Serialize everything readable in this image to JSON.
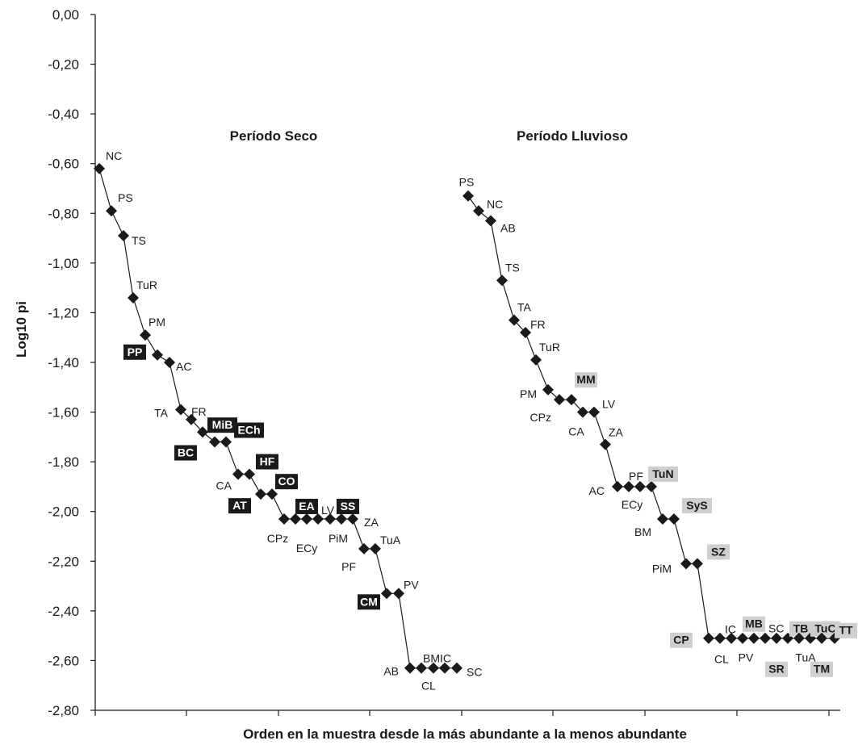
{
  "chart_data": {
    "type": "line",
    "xlabel": "Orden en la muestra desde la más abundante a la menos abundante",
    "ylabel": "Log10 pi",
    "ylim": [
      -2.8,
      0.0
    ],
    "yticks": [
      "0,00",
      "-0,20",
      "-0,40",
      "-0,60",
      "-0,80",
      "-1,00",
      "-1,20",
      "-1,40",
      "-1,60",
      "-1,80",
      "-2,00",
      "-2,20",
      "-2,40",
      "-2,60",
      "-2,80"
    ],
    "grid": false,
    "legend": "none",
    "colors": {
      "line": "#1a1a1a",
      "box_dark": "#1a1a1a",
      "box_light": "#cfcfcf"
    },
    "series": [
      {
        "name": "Período Seco",
        "points": [
          {
            "rank": 1,
            "value": -0.62,
            "label": "NC",
            "style": "plain"
          },
          {
            "rank": 2,
            "value": -0.79,
            "label": "PS",
            "style": "plain"
          },
          {
            "rank": 3,
            "value": -0.89,
            "label": "TS",
            "style": "plain"
          },
          {
            "rank": 4,
            "value": -1.14,
            "label": "TuR",
            "style": "plain"
          },
          {
            "rank": 5,
            "value": -1.29,
            "label": "PM",
            "style": "plain"
          },
          {
            "rank": 6,
            "value": -1.37,
            "label": "PP",
            "style": "dark"
          },
          {
            "rank": 7,
            "value": -1.4,
            "label": "AC",
            "style": "plain"
          },
          {
            "rank": 8,
            "value": -1.59,
            "label": "TA",
            "style": "plain"
          },
          {
            "rank": 9,
            "value": -1.63,
            "label": "FR",
            "style": "plain"
          },
          {
            "rank": 10,
            "value": -1.68,
            "label": "MiB",
            "style": "dark"
          },
          {
            "rank": 11,
            "value": -1.72,
            "label": "BC",
            "style": "dark"
          },
          {
            "rank": 12,
            "value": -1.72,
            "label": "ECh",
            "style": "dark"
          },
          {
            "rank": 13,
            "value": -1.85,
            "label": "CA",
            "style": "plain"
          },
          {
            "rank": 14,
            "value": -1.85,
            "label": "HF",
            "style": "dark"
          },
          {
            "rank": 15,
            "value": -1.93,
            "label": "AT",
            "style": "dark"
          },
          {
            "rank": 16,
            "value": -1.93,
            "label": "CO",
            "style": "dark"
          },
          {
            "rank": 17,
            "value": -2.03,
            "label": "CPz",
            "style": "plain"
          },
          {
            "rank": 18,
            "value": -2.03,
            "label": "EA",
            "style": "dark"
          },
          {
            "rank": 19,
            "value": -2.03,
            "label": "ECy",
            "style": "plain"
          },
          {
            "rank": 20,
            "value": -2.03,
            "label": "LV",
            "style": "plain"
          },
          {
            "rank": 21,
            "value": -2.03,
            "label": "PiM",
            "style": "plain"
          },
          {
            "rank": 22,
            "value": -2.03,
            "label": "SS",
            "style": "dark"
          },
          {
            "rank": 23,
            "value": -2.03,
            "label": "ZA",
            "style": "plain"
          },
          {
            "rank": 24,
            "value": -2.15,
            "label": "PF",
            "style": "plain"
          },
          {
            "rank": 25,
            "value": -2.15,
            "label": "TuA",
            "style": "plain"
          },
          {
            "rank": 26,
            "value": -2.33,
            "label": "CM",
            "style": "dark"
          },
          {
            "rank": 27,
            "value": -2.33,
            "label": "PV",
            "style": "plain"
          },
          {
            "rank": 28,
            "value": -2.63,
            "label": "AB",
            "style": "plain"
          },
          {
            "rank": 29,
            "value": -2.63,
            "label": "BM",
            "style": "plain"
          },
          {
            "rank": 30,
            "value": -2.63,
            "label": "CL",
            "style": "plain"
          },
          {
            "rank": 31,
            "value": -2.63,
            "label": "IC",
            "style": "plain"
          },
          {
            "rank": 32,
            "value": -2.63,
            "label": "SC",
            "style": "plain"
          }
        ]
      },
      {
        "name": "Período Lluvioso",
        "points": [
          {
            "rank": 1,
            "value": -0.73,
            "label": "PS",
            "style": "plain"
          },
          {
            "rank": 2,
            "value": -0.79,
            "label": "NC",
            "style": "plain"
          },
          {
            "rank": 3,
            "value": -0.83,
            "label": "AB",
            "style": "plain"
          },
          {
            "rank": 4,
            "value": -1.07,
            "label": "TS",
            "style": "plain"
          },
          {
            "rank": 5,
            "value": -1.23,
            "label": "TA",
            "style": "plain"
          },
          {
            "rank": 6,
            "value": -1.28,
            "label": "FR",
            "style": "plain"
          },
          {
            "rank": 7,
            "value": -1.39,
            "label": "TuR",
            "style": "plain"
          },
          {
            "rank": 8,
            "value": -1.51,
            "label": "PM",
            "style": "plain"
          },
          {
            "rank": 9,
            "value": -1.55,
            "label": "CPz",
            "style": "plain"
          },
          {
            "rank": 10,
            "value": -1.55,
            "label": "MM",
            "style": "light"
          },
          {
            "rank": 11,
            "value": -1.6,
            "label": "CA",
            "style": "plain"
          },
          {
            "rank": 12,
            "value": -1.6,
            "label": "LV",
            "style": "plain"
          },
          {
            "rank": 13,
            "value": -1.73,
            "label": "ZA",
            "style": "plain"
          },
          {
            "rank": 14,
            "value": -1.9,
            "label": "AC",
            "style": "plain"
          },
          {
            "rank": 15,
            "value": -1.9,
            "label": "PF",
            "style": "plain"
          },
          {
            "rank": 16,
            "value": -1.9,
            "label": "ECy",
            "style": "plain"
          },
          {
            "rank": 17,
            "value": -1.9,
            "label": "TuN",
            "style": "light"
          },
          {
            "rank": 18,
            "value": -2.03,
            "label": "BM",
            "style": "plain"
          },
          {
            "rank": 19,
            "value": -2.03,
            "label": "SyS",
            "style": "light"
          },
          {
            "rank": 20,
            "value": -2.21,
            "label": "PiM",
            "style": "plain"
          },
          {
            "rank": 21,
            "value": -2.21,
            "label": "SZ",
            "style": "light"
          },
          {
            "rank": 22,
            "value": -2.51,
            "label": "CP",
            "style": "light"
          },
          {
            "rank": 23,
            "value": -2.51,
            "label": "IC",
            "style": "plain"
          },
          {
            "rank": 24,
            "value": -2.51,
            "label": "CL",
            "style": "plain"
          },
          {
            "rank": 25,
            "value": -2.51,
            "label": "MB",
            "style": "light"
          },
          {
            "rank": 26,
            "value": -2.51,
            "label": "PV",
            "style": "plain"
          },
          {
            "rank": 27,
            "value": -2.51,
            "label": "SC",
            "style": "plain"
          },
          {
            "rank": 28,
            "value": -2.51,
            "label": "SR",
            "style": "light"
          },
          {
            "rank": 29,
            "value": -2.51,
            "label": "TB",
            "style": "light"
          },
          {
            "rank": 30,
            "value": -2.51,
            "label": "TuA",
            "style": "plain"
          },
          {
            "rank": 31,
            "value": -2.51,
            "label": "TuC",
            "style": "light"
          },
          {
            "rank": 32,
            "value": -2.51,
            "label": "TM",
            "style": "light"
          },
          {
            "rank": 33,
            "value": -2.51,
            "label": "TT",
            "style": "light"
          }
        ]
      }
    ]
  }
}
